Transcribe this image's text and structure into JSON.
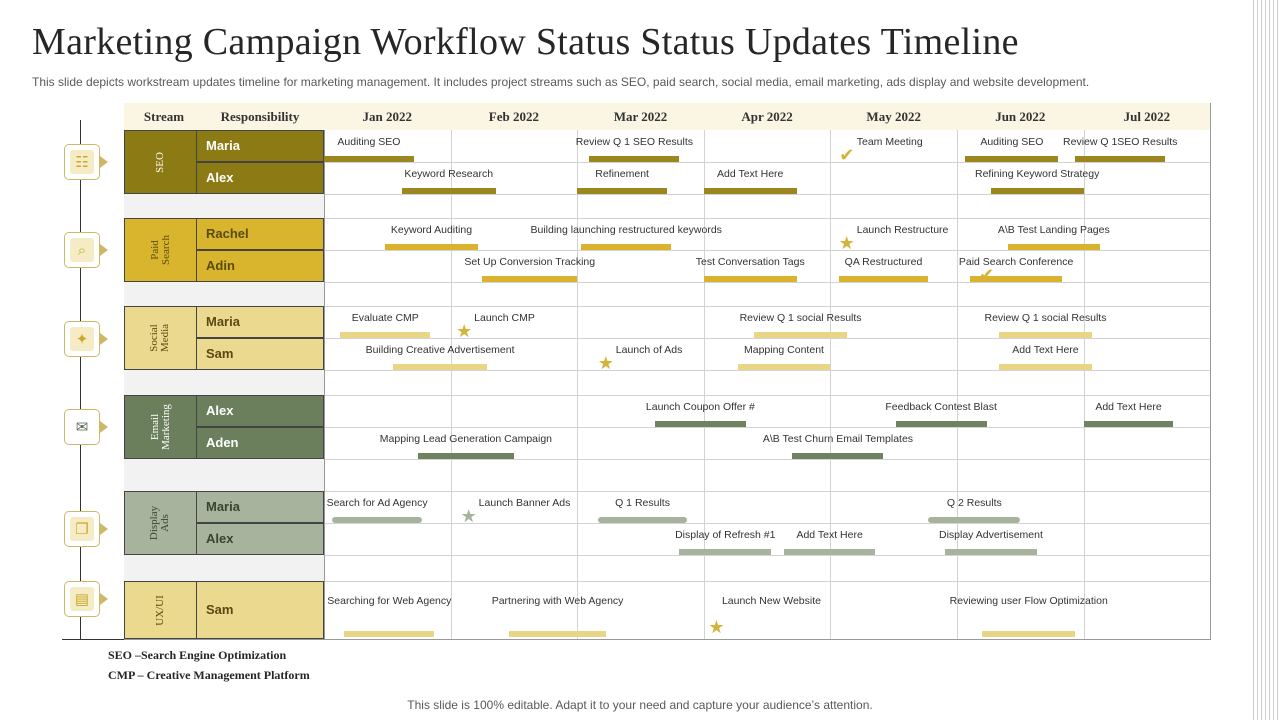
{
  "title": "Marketing Campaign Workflow Status Status Updates Timeline",
  "subtitle": "This slide depicts workstream updates timeline for marketing management. It includes project streams such as SEO, paid search, social media, email marketing, ads display and website development.",
  "header": {
    "stream": "Stream",
    "responsibility": "Responsibility",
    "months": [
      "Jan 2022",
      "Feb 2022",
      "Mar 2022",
      "Apr 2022",
      "May 2022",
      "Jun 2022",
      "Jul 2022"
    ]
  },
  "streams": [
    {
      "name": "SEO",
      "color": "#8c7a14",
      "text_color": "#ffffff",
      "bar_color": "#9c8620",
      "icon": "monitor-chart-icon",
      "people": [
        "Maria",
        "Alex"
      ]
    },
    {
      "name": "Paid\nSearch",
      "color": "#d8b52c",
      "text_color": "#5a4a10",
      "bar_color": "#d9b32e",
      "icon": "search-money-icon",
      "people": [
        "Rachel",
        "Adin"
      ]
    },
    {
      "name": "Social\nMedia",
      "color": "#ebd98f",
      "text_color": "#5a4a10",
      "bar_color": "#e8d585",
      "icon": "network-hand-icon",
      "people": [
        "Maria",
        "Sam"
      ]
    },
    {
      "name": "Email\nMarketing",
      "color": "#6b7f5c",
      "text_color": "#ffffff",
      "bar_color": "#6f8360",
      "icon": "mobile-email-icon",
      "people": [
        "Alex",
        "Aden"
      ]
    },
    {
      "name": "Display\nAds",
      "color": "#a7b39c",
      "text_color": "#3a4430",
      "bar_color": "#a7b39c",
      "icon": "display-ads-icon",
      "people": [
        "Maria",
        "Alex"
      ]
    },
    {
      "name": "UX/UI",
      "color": "#ebd98f",
      "text_color": "#5a4a10",
      "bar_color": "#e8d585",
      "icon": "laptop-design-icon",
      "people": [
        "Sam"
      ]
    }
  ],
  "tasks": [
    {
      "label": "Auditing SEO",
      "start": "2022-01-01",
      "end": "2022-01-23",
      "row": 0,
      "stream": 0
    },
    {
      "label": "Review Q 1 SEO  Results",
      "start": "2022-03-04",
      "end": "2022-03-26",
      "row": 0,
      "stream": 0
    },
    {
      "label": "Auditing SEO",
      "start": "2022-06-03",
      "end": "2022-06-25",
      "row": 0,
      "stream": 0
    },
    {
      "label": "Review Q 1SEO  Results",
      "start": "2022-06-29",
      "end": "2022-07-21",
      "row": 0,
      "stream": 0
    },
    {
      "label": "Keyword Research",
      "start": "2022-01-20",
      "end": "2022-02-11",
      "row": 1,
      "stream": 0
    },
    {
      "label": "Refinement",
      "start": "2022-03-01",
      "end": "2022-03-23",
      "row": 1,
      "stream": 0
    },
    {
      "label": "Add Text Here",
      "start": "2022-04-01",
      "end": "2022-04-23",
      "row": 1,
      "stream": 0
    },
    {
      "label": "Refining Keyword Strategy",
      "start": "2022-06-09",
      "end": "2022-07-01",
      "row": 1,
      "stream": 0
    },
    {
      "label": "Keyword Auditing",
      "start": "2022-01-16",
      "end": "2022-02-07",
      "row": 0,
      "stream": 1
    },
    {
      "label": "Building launching restructured keywords",
      "start": "2022-03-02",
      "end": "2022-03-24",
      "row": 0,
      "stream": 1
    },
    {
      "label": "A\\B Test Landing Pages",
      "start": "2022-06-13",
      "end": "2022-07-05",
      "row": 0,
      "stream": 1
    },
    {
      "label": "Set Up Conversion Tracking",
      "start": "2022-02-08",
      "end": "2022-03-01",
      "row": 1,
      "stream": 1
    },
    {
      "label": "Test Conversation Tags",
      "start": "2022-04-01",
      "end": "2022-04-23",
      "row": 1,
      "stream": 1
    },
    {
      "label": "QA Restructured",
      "start": "2022-05-03",
      "end": "2022-05-25",
      "row": 1,
      "stream": 1
    },
    {
      "label": "Paid Search Conference",
      "start": "2022-06-04",
      "end": "2022-06-26",
      "row": 1,
      "stream": 1
    },
    {
      "label": "Evaluate CMP",
      "start": "2022-01-05",
      "end": "2022-01-27",
      "row": 0,
      "stream": 2
    },
    {
      "label": "Review Q 1 social Results",
      "start": "2022-04-13",
      "end": "2022-05-05",
      "row": 0,
      "stream": 2
    },
    {
      "label": "Review Q 1 social Results",
      "start": "2022-06-11",
      "end": "2022-07-03",
      "row": 0,
      "stream": 2
    },
    {
      "label": "Building Creative Advertisement",
      "start": "2022-01-18",
      "end": "2022-02-09",
      "row": 1,
      "stream": 2
    },
    {
      "label": "Mapping Content",
      "start": "2022-04-09",
      "end": "2022-05-01",
      "row": 1,
      "stream": 2
    },
    {
      "label": "Add Text Here",
      "start": "2022-06-11",
      "end": "2022-07-03",
      "row": 1,
      "stream": 2
    },
    {
      "label": "Launch Coupon  Offer #",
      "start": "2022-03-20",
      "end": "2022-04-11",
      "row": 0,
      "stream": 3
    },
    {
      "label": "Feedback Contest Blast",
      "start": "2022-05-17",
      "end": "2022-06-08",
      "row": 0,
      "stream": 3
    },
    {
      "label": "Add Text Here",
      "start": "2022-07-01",
      "end": "2022-07-23",
      "row": 0,
      "stream": 3
    },
    {
      "label": "Mapping Lead Generation Campaign",
      "start": "2022-01-24",
      "end": "2022-02-15",
      "row": 1,
      "stream": 3
    },
    {
      "label": "A\\B Test Churn Email  Templates",
      "start": "2022-04-22",
      "end": "2022-05-14",
      "row": 1,
      "stream": 3
    },
    {
      "label": "Search for Ad Agency",
      "start": "2022-01-03",
      "end": "2022-01-25",
      "row": 0,
      "stream": 4
    },
    {
      "label": "Q 1 Results",
      "start": "2022-03-06",
      "end": "2022-03-28",
      "row": 0,
      "stream": 4
    },
    {
      "label": "Q 2 Results",
      "start": "2022-05-25",
      "end": "2022-06-16",
      "row": 0,
      "stream": 4
    },
    {
      "label": "Display of Refresh #1",
      "start": "2022-03-26",
      "end": "2022-04-17",
      "row": 1,
      "stream": 4
    },
    {
      "label": "Add Text Here",
      "start": "2022-04-20",
      "end": "2022-05-12",
      "row": 1,
      "stream": 4
    },
    {
      "label": "Display Advertisement",
      "start": "2022-05-29",
      "end": "2022-06-20",
      "row": 1,
      "stream": 4
    },
    {
      "label": "Searching for Web Agency",
      "start": "2022-01-06",
      "end": "2022-01-28",
      "row": 0,
      "stream": 5
    },
    {
      "label": "Partnering with Web Agency",
      "start": "2022-02-14",
      "end": "2022-03-08",
      "row": 0,
      "stream": 5
    },
    {
      "label": "Reviewing user Flow Optimization",
      "start": "2022-06-07",
      "end": "2022-06-29",
      "row": 0,
      "stream": 5
    }
  ],
  "milestones": [
    {
      "label": "Team Meeting",
      "date": "2022-05-05",
      "row": 0,
      "stream": 0,
      "type": "check"
    },
    {
      "label": "Launch Restructure",
      "date": "2022-05-05",
      "row": 0,
      "stream": 1,
      "type": "star"
    },
    {
      "label": "",
      "date": "2022-06-08",
      "row": 1,
      "stream": 1,
      "type": "check"
    },
    {
      "label": "Launch CMP",
      "date": "2022-02-04",
      "row": 0,
      "stream": 2,
      "type": "star"
    },
    {
      "label": "Launch of Ads",
      "date": "2022-03-08",
      "row": 1,
      "stream": 2,
      "type": "star"
    },
    {
      "label": "Launch Banner Ads",
      "date": "2022-02-05",
      "row": 0,
      "stream": 4,
      "type": "star"
    },
    {
      "label": "Launch New Website",
      "date": "2022-04-04",
      "row": 0,
      "stream": 5,
      "type": "star"
    }
  ],
  "legend": [
    "SEO –Search Engine Optimization",
    "CMP – Creative Management Platform"
  ],
  "footer": "This slide is 100% editable. Adapt it to your need and capture your audience’s attention.",
  "colors": {
    "header_bg": "#faf6e3",
    "icon_border": "#cdb86a",
    "grid": "#d3d3d3",
    "milestone": "#d4b33a"
  }
}
